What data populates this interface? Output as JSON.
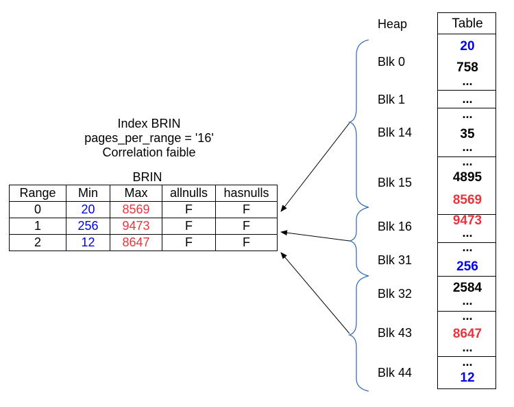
{
  "caption": {
    "line1": "Index BRIN",
    "line2": "pages_per_range = '16'",
    "line3": "Correlation faible"
  },
  "brin": {
    "title": "BRIN",
    "headers": [
      "Range",
      "Min",
      "Max",
      "allnulls",
      "hasnulls"
    ],
    "rows": [
      [
        "0",
        "20",
        "8569",
        "F",
        "F"
      ],
      [
        "1",
        "256",
        "9473",
        "F",
        "F"
      ],
      [
        "2",
        "12",
        "8647",
        "F",
        "F"
      ]
    ]
  },
  "heap": {
    "label": "Heap",
    "table_label": "Table",
    "blocks": [
      "Blk 0",
      "Blk 1",
      "Blk 14",
      "Blk 15",
      "Blk 16",
      "Blk 31",
      "Blk 32",
      "Blk 43",
      "Blk 44"
    ],
    "values": {
      "v20": "20",
      "v758": "758",
      "v35": "35",
      "v4895": "4895",
      "v8569": "8569",
      "v9473": "9473",
      "v256": "256",
      "v2584": "2584",
      "v8647": "8647",
      "v12": "12"
    },
    "ellipsis": "..."
  },
  "colors": {
    "min": "#0000ee",
    "max": "#e8343c",
    "brace": "#3a6fb5"
  }
}
